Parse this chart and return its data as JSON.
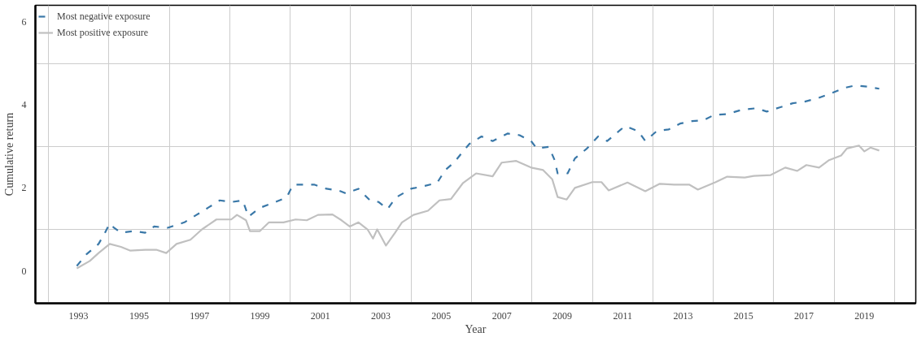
{
  "chart_data": {
    "type": "line",
    "xlabel": "Year",
    "ylabel": "Cumulative return",
    "xlim": [
      1991.57,
      2020.7
    ],
    "ylim": [
      -0.78,
      6.4
    ],
    "xticks": [
      {
        "value": 1992,
        "label": null
      },
      1993,
      {
        "value": 1994,
        "label": null
      },
      1995,
      {
        "value": 1996,
        "label": null
      },
      1997,
      {
        "value": 1998,
        "label": null
      },
      1999,
      {
        "value": 2000,
        "label": null
      },
      2001,
      {
        "value": 2002,
        "label": null
      },
      2003,
      {
        "value": 2004,
        "label": null
      },
      2005,
      {
        "value": 2006,
        "label": null
      },
      2007,
      {
        "value": 2008,
        "label": null
      },
      2009,
      {
        "value": 2010,
        "label": null
      },
      2011,
      {
        "value": 2012,
        "label": null
      },
      2013,
      {
        "value": 2014,
        "label": null
      },
      2015,
      {
        "value": 2016,
        "label": null
      },
      2017,
      {
        "value": 2018,
        "label": null
      },
      2019,
      {
        "value": 2020,
        "label": null
      }
    ],
    "yticks": [
      0,
      {
        "value": 1,
        "label": null
      },
      2,
      {
        "value": 3,
        "label": null
      },
      4,
      {
        "value": 5,
        "label": null
      },
      6
    ],
    "grid": true,
    "legend": "top left",
    "series": [
      {
        "name": "Most negative exposure",
        "color": "#3a78a8",
        "line_style": "dashed",
        "x": [
          1992.94,
          1993.26,
          1993.66,
          1993.85,
          1994.03,
          1994.17,
          1994.4,
          1994.84,
          1995.2,
          1995.5,
          1995.95,
          1996.5,
          1996.9,
          1997.28,
          1997.67,
          1998.05,
          1998.43,
          1998.62,
          1999.0,
          1999.4,
          1999.88,
          2000.1,
          2000.55,
          2000.79,
          2001.2,
          2001.6,
          2001.84,
          2002.26,
          2002.64,
          2002.93,
          2003.22,
          2003.5,
          2004.0,
          2004.46,
          2004.86,
          2005.13,
          2005.42,
          2005.72,
          2005.93,
          2006.33,
          2006.7,
          2007.19,
          2007.59,
          2007.97,
          2008.16,
          2008.56,
          2008.75,
          2008.85,
          2009.18,
          2009.42,
          2009.82,
          2010.19,
          2010.49,
          2010.78,
          2011.08,
          2011.51,
          2011.75,
          2012.13,
          2012.53,
          2012.9,
          2013.3,
          2013.68,
          2014.03,
          2014.46,
          2014.94,
          2015.42,
          2015.77,
          2016.2,
          2016.63,
          2017.03,
          2017.46,
          2017.94,
          2018.34,
          2018.71,
          2019.09,
          2019.49
        ],
        "values": [
          0.12,
          0.4,
          0.65,
          0.89,
          1.14,
          1.04,
          0.92,
          0.96,
          0.92,
          1.07,
          1.04,
          1.17,
          1.35,
          1.52,
          1.7,
          1.66,
          1.7,
          1.31,
          1.52,
          1.63,
          1.77,
          2.08,
          2.08,
          2.08,
          1.98,
          1.94,
          1.87,
          1.98,
          1.7,
          1.66,
          1.49,
          1.77,
          1.98,
          2.05,
          2.12,
          2.43,
          2.61,
          2.88,
          3.06,
          3.24,
          3.13,
          3.31,
          3.27,
          3.13,
          2.95,
          2.99,
          2.67,
          2.35,
          2.35,
          2.71,
          2.95,
          3.24,
          3.13,
          3.31,
          3.49,
          3.37,
          3.13,
          3.37,
          3.41,
          3.55,
          3.61,
          3.63,
          3.76,
          3.78,
          3.88,
          3.92,
          3.84,
          3.94,
          4.04,
          4.08,
          4.16,
          4.29,
          4.41,
          4.47,
          4.44,
          4.39
        ]
      },
      {
        "name": "Most positive exposure",
        "color": "#c0c0c0",
        "line_style": "solid",
        "x": [
          1992.94,
          1993.37,
          1993.66,
          1994.03,
          1994.4,
          1994.7,
          1995.2,
          1995.57,
          1995.9,
          1996.24,
          1996.7,
          1997.08,
          1997.56,
          1998.05,
          1998.24,
          1998.54,
          1998.67,
          1999.0,
          1999.3,
          1999.78,
          2000.18,
          2000.55,
          2000.92,
          2001.4,
          2001.7,
          2001.97,
          2002.26,
          2002.56,
          2002.74,
          2002.88,
          2003.17,
          2003.47,
          2003.7,
          2004.08,
          2004.56,
          2004.94,
          2005.32,
          2005.72,
          2006.15,
          2006.7,
          2007.0,
          2007.48,
          2007.97,
          2008.37,
          2008.67,
          2008.85,
          2009.15,
          2009.42,
          2010.0,
          2010.3,
          2010.54,
          2011.16,
          2011.75,
          2012.23,
          2012.71,
          2013.2,
          2013.49,
          2014.08,
          2014.46,
          2015.04,
          2015.34,
          2015.9,
          2016.38,
          2016.78,
          2017.08,
          2017.5,
          2017.83,
          2018.23,
          2018.42,
          2018.82,
          2019.0,
          2019.2,
          2019.49
        ],
        "values": [
          0.06,
          0.24,
          0.43,
          0.65,
          0.58,
          0.49,
          0.51,
          0.51,
          0.43,
          0.65,
          0.75,
          1.0,
          1.24,
          1.24,
          1.35,
          1.22,
          0.96,
          0.96,
          1.17,
          1.17,
          1.24,
          1.22,
          1.35,
          1.36,
          1.22,
          1.07,
          1.17,
          1.0,
          0.78,
          1.0,
          0.61,
          0.92,
          1.17,
          1.35,
          1.45,
          1.7,
          1.73,
          2.12,
          2.35,
          2.28,
          2.61,
          2.65,
          2.49,
          2.43,
          2.21,
          1.78,
          1.72,
          2.0,
          2.14,
          2.14,
          1.94,
          2.13,
          1.92,
          2.1,
          2.08,
          2.08,
          1.96,
          2.14,
          2.27,
          2.25,
          2.29,
          2.31,
          2.49,
          2.41,
          2.55,
          2.49,
          2.67,
          2.78,
          2.95,
          3.02,
          2.88,
          2.97,
          2.9
        ]
      }
    ]
  }
}
